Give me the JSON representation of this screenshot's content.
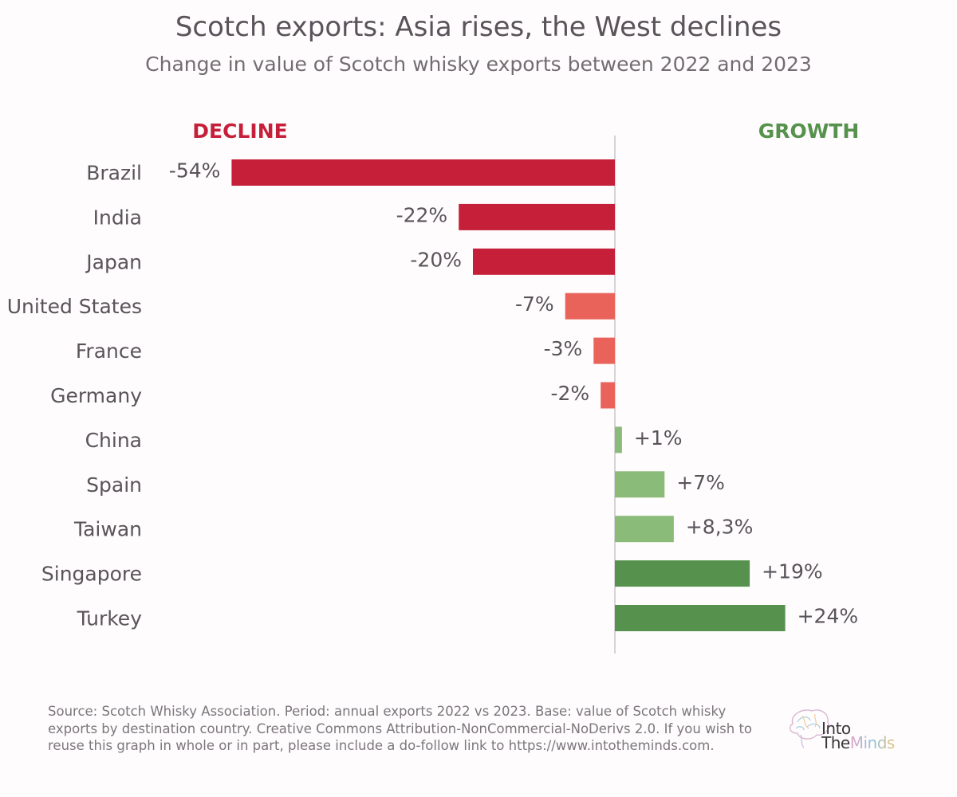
{
  "title": "Scotch exports: Asia rises, the West declines",
  "subtitle": "Change in value of Scotch whisky exports between 2022 and 2023",
  "source_text": "Source: Scotch Whisky Association. Period: annual exports 2022 vs 2023. Base: value of Scotch whisky exports by destination country. Creative Commons Attribution-NonCommercial-NoDerivs 2.0. If you wish to reuse this graph in whole or in part, please include a do-follow link to https://www.intotheminds.com.",
  "logo": {
    "line1": "Into",
    "line2_a": "The",
    "line2_b": "Minds"
  },
  "colors": {
    "decline_strong": "#c61f3a",
    "decline_light": "#ea635a",
    "growth_light": "#8bbb78",
    "growth_strong": "#56924d",
    "decline_header": "#c61f3a",
    "growth_header": "#56924d",
    "text": "#58545a",
    "axis": "#c9c7cb"
  },
  "chart_data": {
    "type": "bar",
    "orientation": "horizontal",
    "header_left": "DECLINE",
    "header_right": "GROWTH",
    "categories": [
      "Brazil",
      "India",
      "Japan",
      "United States",
      "France",
      "Germany",
      "China",
      "Spain",
      "Taiwan",
      "Singapore",
      "Turkey"
    ],
    "values": [
      -54,
      -22,
      -20,
      -7,
      -3,
      -2,
      1,
      7,
      8.3,
      19,
      24
    ],
    "value_labels": [
      "-54%",
      "-22%",
      "-20%",
      "-7%",
      "-3%",
      "-2%",
      "+1%",
      "+7%",
      "+8,3%",
      "+19%",
      "+24%"
    ],
    "bar_colors": [
      "decline_strong",
      "decline_strong",
      "decline_strong",
      "decline_light",
      "decline_light",
      "decline_light",
      "growth_light",
      "growth_light",
      "growth_light",
      "growth_strong",
      "growth_strong"
    ],
    "unit": "%"
  }
}
